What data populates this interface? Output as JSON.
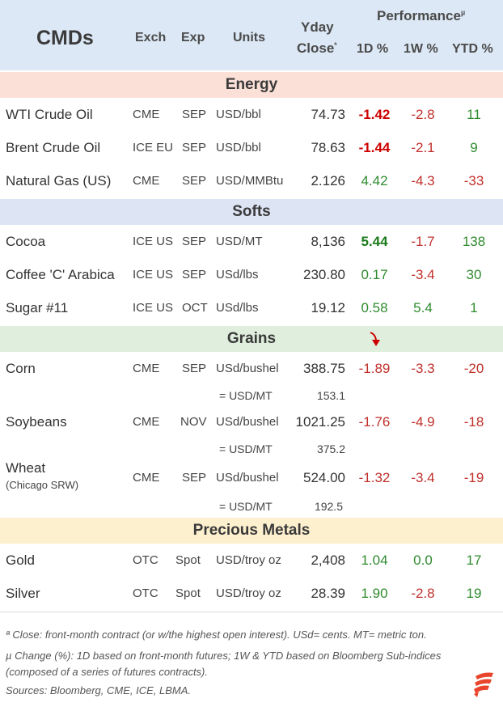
{
  "header": {
    "title": "CMDs",
    "col_exch": "Exch",
    "col_exp": "Exp",
    "col_units": "Units",
    "col_yday": "Yday",
    "col_close": "Close",
    "close_marker": "ª",
    "performance": "Performance",
    "perf_marker": "µ",
    "col_1d": "1D %",
    "col_1w": "1W %",
    "col_ytd": "YTD %"
  },
  "sections": {
    "energy": "Energy",
    "softs": "Softs",
    "grains": "Grains",
    "metals": "Precious Metals"
  },
  "rows": {
    "wti": {
      "name": "WTI Crude Oil",
      "exch": "CME",
      "exp": "SEP",
      "units": "USD/bbl",
      "close": "74.73",
      "d1": "-1.42",
      "w1": "-2.8",
      "ytd": "11"
    },
    "brent": {
      "name": "Brent Crude Oil",
      "exch": "ICE EU",
      "exp": "SEP",
      "units": "USD/bbl",
      "close": "78.63",
      "d1": "-1.44",
      "w1": "-2.1",
      "ytd": "9"
    },
    "natgas": {
      "name": "Natural Gas (US)",
      "exch": "CME",
      "exp": "SEP",
      "units": "USD/MMBtu",
      "close": "2.126",
      "d1": "4.42",
      "w1": "-4.3",
      "ytd": "-33"
    },
    "cocoa": {
      "name": "Cocoa",
      "exch": "ICE US",
      "exp": "SEP",
      "units": "USD/MT",
      "close": "8,136",
      "d1": "5.44",
      "w1": "-1.7",
      "ytd": "138"
    },
    "coffee": {
      "name": "Coffee 'C' Arabica",
      "exch": "ICE US",
      "exp": "SEP",
      "units": "USd/lbs",
      "close": "230.80",
      "d1": "0.17",
      "w1": "-3.4",
      "ytd": "30"
    },
    "sugar": {
      "name": "Sugar #11",
      "exch": "ICE US",
      "exp": "OCT",
      "units": "USd/lbs",
      "close": "19.12",
      "d1": "0.58",
      "w1": "5.4",
      "ytd": "1"
    },
    "corn": {
      "name": "Corn",
      "exch": "CME",
      "exp": "SEP",
      "units": "USd/bushel",
      "close": "388.75",
      "d1": "-1.89",
      "w1": "-3.3",
      "ytd": "-20",
      "sub_units": "= USD/MT",
      "sub_close": "153.1"
    },
    "soy": {
      "name": "Soybeans",
      "exch": "CME",
      "exp": "NOV",
      "units": "USd/bushel",
      "close": "1021.25",
      "d1": "-1.76",
      "w1": "-4.9",
      "ytd": "-18",
      "sub_units": "= USD/MT",
      "sub_close": "375.2"
    },
    "wheat": {
      "name": "Wheat",
      "name_sub": "(Chicago SRW)",
      "exch": "CME",
      "exp": "SEP",
      "units": "USd/bushel",
      "close": "524.00",
      "d1": "-1.32",
      "w1": "-3.4",
      "ytd": "-19",
      "sub_units": "= USD/MT",
      "sub_close": "192.5"
    },
    "gold": {
      "name": "Gold",
      "exch": "OTC",
      "exp": "Spot",
      "units": "USD/troy oz",
      "close": "2,408",
      "d1": "1.04",
      "w1": "0.0",
      "ytd": "17"
    },
    "silver": {
      "name": "Silver",
      "exch": "OTC",
      "exp": "Spot",
      "units": "USD/troy oz",
      "close": "28.39",
      "d1": "1.90",
      "w1": "-2.8",
      "ytd": "19"
    }
  },
  "footnotes": {
    "line1": "ª Close: front-month contract (or w/the highest open interest). USd= cents. MT= metric ton.",
    "line2": "µ Change (%): 1D based on front-month futures; 1W & YTD based on Bloomberg Sub-indices",
    "line3": "(composed of a series of futures contracts).",
    "line4": "Sources: Bloomberg, CME, ICE, LBMA."
  },
  "colors": {
    "header_bg": "#dce8f5",
    "energy_bg": "#fbe0d8",
    "softs_bg": "#dde4f4",
    "grains_bg": "#dfeedd",
    "metals_bg": "#fdf0cf",
    "positive": "#2e8b2e",
    "negative": "#c0302b",
    "arrow": "#cc0000",
    "logo": "#e8452c"
  },
  "icons": {
    "arrow": "down-arrow-icon",
    "logo": "brand-logo-icon"
  }
}
